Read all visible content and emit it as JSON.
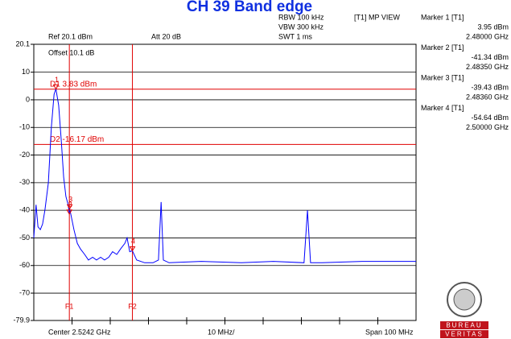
{
  "chart_data": {
    "type": "line",
    "title": "CH 39 Band edge",
    "info": {
      "rbw": "RBW 100 kHz",
      "vbw": "VBW 300 kHz",
      "swt": "SWT 1 ms",
      "view": "[T1] MP VIEW",
      "ref": "Ref 20.1 dBm",
      "att": "Att 20 dB",
      "offset": "Offset 10.1 dB",
      "center": "Center 2.5242 GHz",
      "div": "10 MHz/",
      "span": "Span 100 MHz"
    },
    "x": [
      2.4742,
      2.4748,
      2.4753,
      2.4759,
      2.4765,
      2.4771,
      2.478,
      2.4788,
      2.4795,
      2.48,
      2.4807,
      2.4814,
      2.482,
      2.4826,
      2.4832,
      2.4835,
      2.4836,
      2.4847,
      2.4856,
      2.4864,
      2.4875,
      2.4885,
      2.4896,
      2.4906,
      2.4917,
      2.4927,
      2.4938,
      2.4948,
      2.4959,
      2.4969,
      2.498,
      2.4986,
      2.4993,
      2.5,
      2.5011,
      2.5032,
      2.5054,
      2.5068,
      2.5075,
      2.5081,
      2.5096,
      2.518,
      2.5285,
      2.5369,
      2.5449,
      2.5458,
      2.5466,
      2.5496,
      2.5601,
      2.5742
    ],
    "series": [
      {
        "color": "#0000ff",
        "values": [
          -50,
          -38,
          -46,
          -47,
          -45,
          -40,
          -30,
          -10,
          2,
          3.95,
          -2,
          -15,
          -28,
          -35,
          -38,
          -41.34,
          -39.43,
          -47,
          -52,
          -54,
          -56,
          -58,
          -57,
          -58,
          -57,
          -58,
          -57,
          -55,
          -56,
          -54,
          -52,
          -50,
          -55,
          -54.64,
          -58,
          -59,
          -59,
          -58,
          -37,
          -58,
          -59,
          -58.5,
          -59,
          -58.5,
          -59,
          -40,
          -59,
          -59,
          -58.5,
          -58.5
        ]
      }
    ],
    "xlim": [
      2.4742,
      2.5742
    ],
    "xticks": [
      2.4842,
      2.4942,
      2.5042,
      2.5142,
      2.5242,
      2.5342,
      2.5442,
      2.5542,
      2.5642
    ],
    "ylim": [
      -79.9,
      20.1
    ],
    "yticks": [
      20.1,
      10,
      0,
      -10,
      -20,
      -30,
      -40,
      -50,
      -60,
      -70,
      -79.9
    ],
    "grid": true,
    "markers": {
      "ids": [
        "1",
        "2",
        "3",
        "4"
      ],
      "names": [
        "Marker 1 [T1]",
        "Marker 2 [T1]",
        "Marker 3 [T1]",
        "Marker 4 [T1]"
      ],
      "x": [
        2.48,
        2.4835,
        2.4836,
        2.5
      ],
      "values": [
        3.95,
        -41.34,
        -39.43,
        -54.64
      ],
      "value_labels": [
        "3.95 dBm",
        "-41.34 dBm",
        "-39.43 dBm",
        "-54.64 dBm"
      ],
      "x_labels": [
        "2.48000 GHz",
        "2.48350 GHz",
        "2.48360 GHz",
        "2.50000 GHz"
      ]
    },
    "display_lines": [
      {
        "label": "D1 3.83 dBm",
        "value": 3.83
      },
      {
        "label": "D2 -16.17 dBm",
        "value": -16.17
      }
    ],
    "frequency_lines": [
      {
        "label": "F1",
        "value": 2.4835
      },
      {
        "label": "F2",
        "value": 2.5
      }
    ],
    "line_color": "#e00000",
    "logo": {
      "top": "BUREAU",
      "bottom": "VERITAS"
    }
  }
}
